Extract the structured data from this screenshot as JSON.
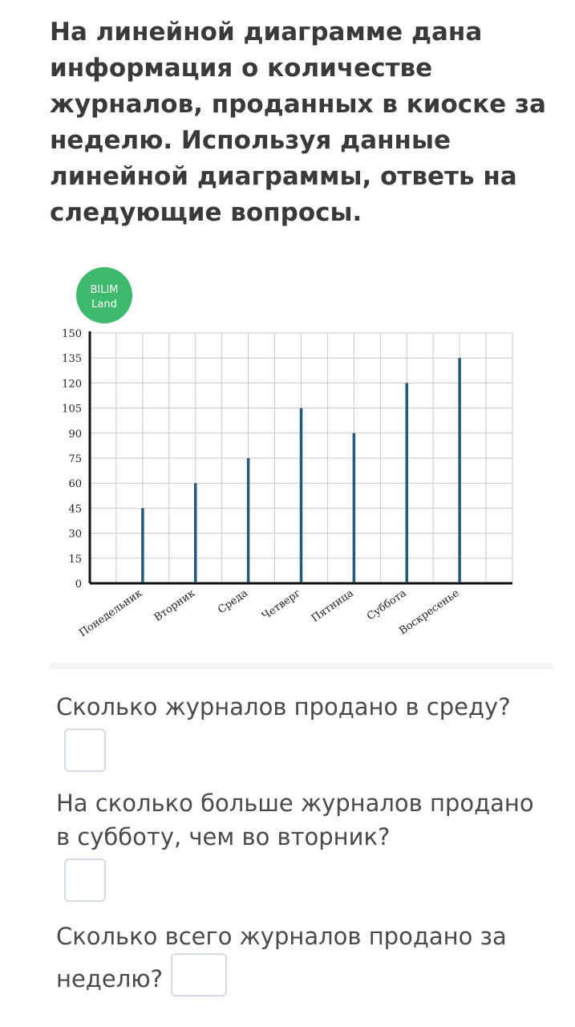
{
  "title": "На линейной диаграмме дана информация о количестве журналов, проданных в киоске за неделю. Используя данные линейной диаграммы, ответь на следующие вопросы.",
  "logo": {
    "line1": "BILIM",
    "line2": "Land",
    "color": "#3dba6c"
  },
  "chart_data": {
    "type": "bar",
    "categories": [
      "Понедельник",
      "Вторник",
      "Среда",
      "Четверг",
      "Пятница",
      "Суббота",
      "Воскресенье"
    ],
    "values": [
      45,
      60,
      75,
      105,
      90,
      120,
      135
    ],
    "yticks": [
      0,
      15,
      30,
      45,
      60,
      75,
      90,
      105,
      120,
      135,
      150
    ],
    "ylim": [
      0,
      150
    ],
    "grid": true,
    "bar_color": "#1f5b7a"
  },
  "questions": [
    {
      "text": "Сколько журналов продано в среду?"
    },
    {
      "text": "На сколько больше журналов продано в субботу, чем во вторник?"
    },
    {
      "text": "Сколько всего журналов продано за неделю?"
    }
  ]
}
